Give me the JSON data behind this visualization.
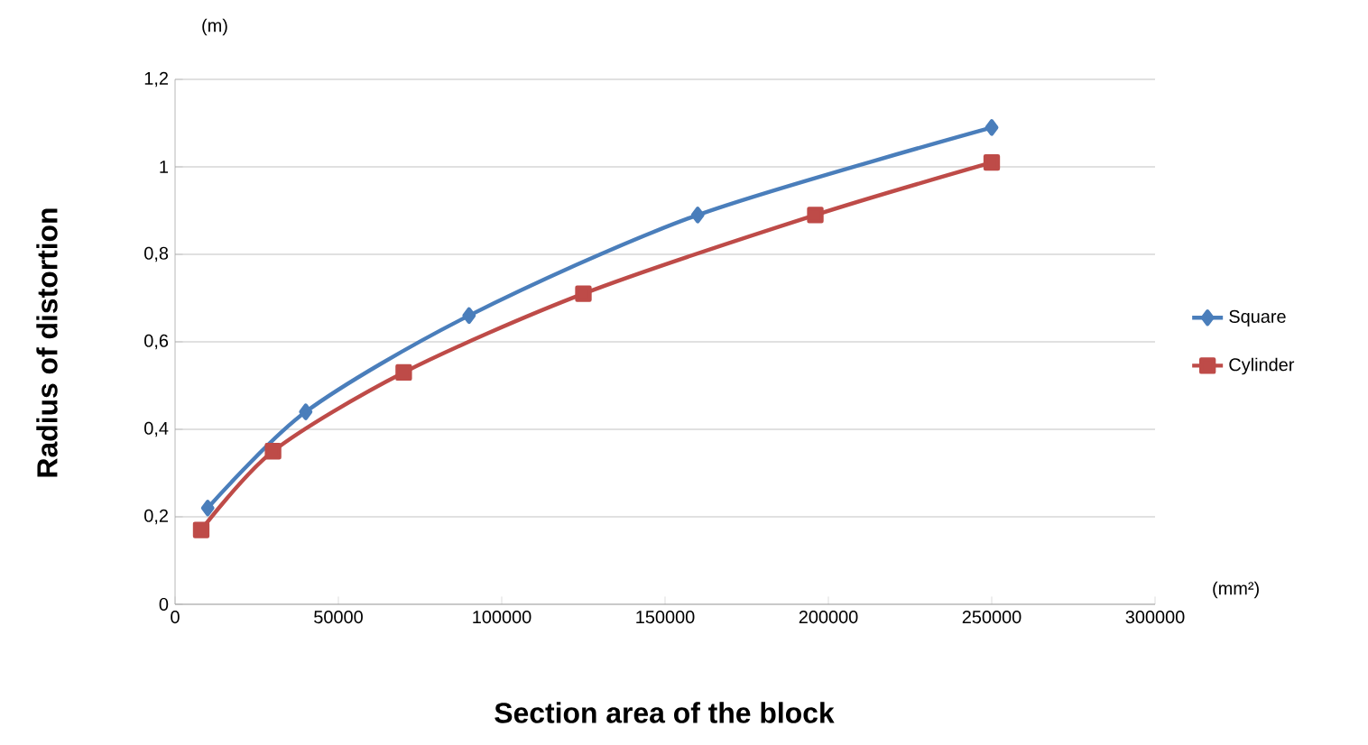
{
  "chart_data": {
    "type": "line",
    "xlabel": "Section area of the block",
    "ylabel": "Radius of distortion",
    "annotations": [
      "(m)",
      "(mm²)"
    ],
    "series": [
      {
        "name": "Square",
        "color": "#4a7ebb",
        "marker": "diamond",
        "x": [
          10000,
          40000,
          90000,
          160000,
          250000
        ],
        "values": [
          0.22,
          0.44,
          0.66,
          0.89,
          1.09
        ]
      },
      {
        "name": "Cylinder",
        "color": "#be4b48",
        "marker": "square",
        "x": [
          8000,
          30000,
          70000,
          125000,
          196000,
          250000
        ],
        "values": [
          0.17,
          0.35,
          0.53,
          0.71,
          0.89,
          1.01
        ]
      }
    ],
    "xlim": [
      0,
      300000
    ],
    "xticks": [
      0,
      50000,
      100000,
      150000,
      200000,
      250000,
      300000
    ],
    "ylim": [
      0,
      1.2
    ],
    "yticks": [
      0,
      {
        "value": 0.2,
        "label": "0,2"
      },
      {
        "value": 0.4,
        "label": "0,4"
      },
      {
        "value": 0.6,
        "label": "0,6"
      },
      {
        "value": 0.8,
        "label": "0,8"
      },
      1,
      {
        "value": 1.2,
        "label": "1,2"
      }
    ],
    "grid": "y",
    "legend": "right"
  }
}
